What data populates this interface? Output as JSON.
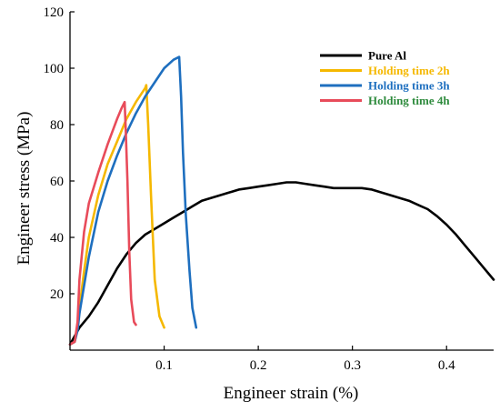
{
  "chart_data": {
    "type": "line",
    "xlabel": "Engineer strain (%)",
    "ylabel": "Engineer stress (MPa)",
    "xlim": [
      0,
      0.45
    ],
    "ylim": [
      0,
      120
    ],
    "x_ticks": [
      0.1,
      0.2,
      0.3,
      0.4
    ],
    "x_tick_labels": [
      "0.1",
      "0.2",
      "0.3",
      "0.4"
    ],
    "y_ticks": [
      20,
      40,
      60,
      80,
      100,
      120
    ],
    "y_tick_labels": [
      "20",
      "40",
      "60",
      "80",
      "100",
      "120"
    ],
    "grid": false,
    "legend_position": "top-right",
    "series": [
      {
        "name": "Pure Al",
        "color": "#000000",
        "legend_color": "#000000",
        "points": [
          [
            0.0,
            2
          ],
          [
            0.005,
            5
          ],
          [
            0.01,
            8
          ],
          [
            0.02,
            12
          ],
          [
            0.03,
            17
          ],
          [
            0.04,
            23
          ],
          [
            0.05,
            29
          ],
          [
            0.06,
            34
          ],
          [
            0.07,
            38
          ],
          [
            0.08,
            41
          ],
          [
            0.09,
            43
          ],
          [
            0.1,
            45
          ],
          [
            0.11,
            47
          ],
          [
            0.12,
            49
          ],
          [
            0.13,
            51
          ],
          [
            0.14,
            53
          ],
          [
            0.15,
            54
          ],
          [
            0.16,
            55
          ],
          [
            0.17,
            56
          ],
          [
            0.18,
            57
          ],
          [
            0.19,
            57.5
          ],
          [
            0.2,
            58
          ],
          [
            0.21,
            58.5
          ],
          [
            0.22,
            59
          ],
          [
            0.23,
            59.5
          ],
          [
            0.24,
            59.5
          ],
          [
            0.25,
            59
          ],
          [
            0.26,
            58.5
          ],
          [
            0.27,
            58
          ],
          [
            0.28,
            57.5
          ],
          [
            0.29,
            57.5
          ],
          [
            0.3,
            57.5
          ],
          [
            0.31,
            57.5
          ],
          [
            0.32,
            57
          ],
          [
            0.33,
            56
          ],
          [
            0.34,
            55
          ],
          [
            0.35,
            54
          ],
          [
            0.36,
            53
          ],
          [
            0.37,
            51.5
          ],
          [
            0.38,
            50
          ],
          [
            0.39,
            47.5
          ],
          [
            0.4,
            44.5
          ],
          [
            0.41,
            41
          ],
          [
            0.42,
            37
          ],
          [
            0.43,
            33
          ],
          [
            0.44,
            29
          ],
          [
            0.45,
            25
          ]
        ]
      },
      {
        "name": "Holding time 2h",
        "color": "#f5b800",
        "legend_color": "#f5b800",
        "points": [
          [
            0.0,
            2
          ],
          [
            0.005,
            3
          ],
          [
            0.008,
            8
          ],
          [
            0.01,
            15
          ],
          [
            0.015,
            28
          ],
          [
            0.02,
            40
          ],
          [
            0.03,
            55
          ],
          [
            0.04,
            66
          ],
          [
            0.05,
            74
          ],
          [
            0.06,
            82
          ],
          [
            0.07,
            88
          ],
          [
            0.08,
            93
          ],
          [
            0.081,
            94
          ],
          [
            0.083,
            80
          ],
          [
            0.086,
            55
          ],
          [
            0.09,
            25
          ],
          [
            0.095,
            12
          ],
          [
            0.1,
            8
          ]
        ]
      },
      {
        "name": "Holding time 3h",
        "color": "#1e6fbf",
        "legend_color": "#1e6fbf",
        "points": [
          [
            0.0,
            2
          ],
          [
            0.005,
            3
          ],
          [
            0.008,
            7
          ],
          [
            0.01,
            13
          ],
          [
            0.02,
            33
          ],
          [
            0.03,
            49
          ],
          [
            0.04,
            60
          ],
          [
            0.05,
            69
          ],
          [
            0.06,
            77
          ],
          [
            0.07,
            84
          ],
          [
            0.08,
            90
          ],
          [
            0.09,
            95
          ],
          [
            0.1,
            100
          ],
          [
            0.11,
            103
          ],
          [
            0.116,
            104
          ],
          [
            0.118,
            90
          ],
          [
            0.12,
            70
          ],
          [
            0.123,
            48
          ],
          [
            0.127,
            28
          ],
          [
            0.13,
            15
          ],
          [
            0.134,
            8
          ]
        ]
      },
      {
        "name": "Holding time 4h",
        "color": "#e84b5a",
        "legend_color": "#2e8b3d",
        "points": [
          [
            0.0,
            2
          ],
          [
            0.005,
            3
          ],
          [
            0.008,
            10
          ],
          [
            0.01,
            25
          ],
          [
            0.015,
            42
          ],
          [
            0.02,
            52
          ],
          [
            0.03,
            63
          ],
          [
            0.04,
            73
          ],
          [
            0.05,
            82
          ],
          [
            0.055,
            86
          ],
          [
            0.058,
            88
          ],
          [
            0.059,
            80
          ],
          [
            0.061,
            60
          ],
          [
            0.063,
            35
          ],
          [
            0.065,
            18
          ],
          [
            0.068,
            10
          ],
          [
            0.07,
            9
          ]
        ]
      }
    ]
  }
}
